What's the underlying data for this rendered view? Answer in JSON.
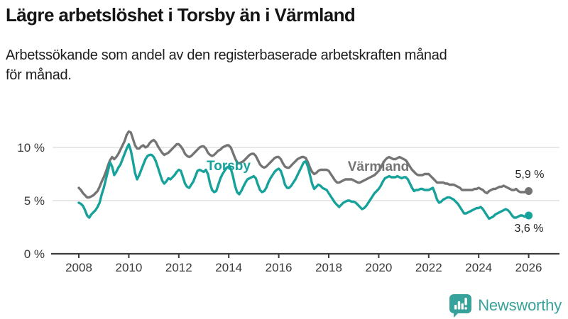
{
  "header": {
    "title": "Lägre arbetslöshet i Torsby än i Värmland",
    "subtitle_lines": [
      "Arbetssökande som andel av den registerbaserade arbetskraften månad",
      "för månad."
    ]
  },
  "footer": {
    "brand": "Newsworthy"
  },
  "colors": {
    "brand": "#37a29b",
    "torsby": "#16a19a",
    "varmland": "#747474",
    "grid": "#d9d9d9",
    "axis": "#3c3c3c"
  },
  "chart_data": {
    "type": "line",
    "title": "Lägre arbetslöshet i Torsby än i Värmland",
    "subtitle": "Arbetssökande som andel av den registerbaserade arbetskraften månad för månad.",
    "x_unit": "month",
    "x_start": "2008-01",
    "x_end": "2026-01",
    "xlim": [
      2008,
      2026.35
    ],
    "ylim": [
      0,
      12
    ],
    "grid": "horizontal",
    "legend_position": "inline-labels",
    "xticks": [
      {
        "value": 2008,
        "label": "2008"
      },
      {
        "value": 2010,
        "label": "2010"
      },
      {
        "value": 2012,
        "label": "2012"
      },
      {
        "value": 2014,
        "label": "2014"
      },
      {
        "value": 2016,
        "label": "2016"
      },
      {
        "value": 2018,
        "label": "2018"
      },
      {
        "value": 2020,
        "label": "2020"
      },
      {
        "value": 2022,
        "label": "2022"
      },
      {
        "value": 2024,
        "label": "2024"
      },
      {
        "value": 2026,
        "label": "2026"
      }
    ],
    "yticks": [
      {
        "value": 0,
        "label": "0 %"
      },
      {
        "value": 5,
        "label": "5 %"
      },
      {
        "value": 10,
        "label": "10 %"
      }
    ],
    "series": [
      {
        "name": "Torsby",
        "color": "#16a19a",
        "end_label": "3,6 %",
        "end_value": 3.6,
        "values": [
          4.8,
          4.7,
          4.5,
          4.1,
          3.6,
          3.4,
          3.7,
          3.9,
          4.1,
          4.4,
          4.8,
          5.6,
          6.2,
          7.0,
          7.8,
          8.6,
          8.2,
          7.4,
          7.7,
          8.1,
          8.4,
          8.9,
          9.4,
          9.9,
          10.3,
          9.7,
          8.7,
          7.6,
          7.0,
          7.4,
          7.9,
          8.4,
          8.9,
          9.2,
          9.3,
          9.3,
          9.1,
          8.7,
          8.1,
          7.5,
          6.9,
          6.6,
          6.8,
          7.1,
          7.0,
          7.2,
          7.4,
          7.7,
          7.9,
          7.8,
          7.2,
          6.6,
          6.3,
          6.2,
          6.5,
          6.8,
          7.3,
          7.8,
          7.9,
          7.8,
          7.7,
          7.9,
          7.5,
          6.6,
          6.0,
          5.8,
          5.9,
          6.5,
          7.1,
          7.5,
          7.8,
          8.1,
          8.2,
          8.0,
          7.3,
          6.4,
          5.8,
          5.6,
          5.9,
          6.3,
          6.7,
          7.0,
          7.1,
          7.2,
          7.3,
          7.1,
          6.5,
          6.0,
          5.8,
          5.9,
          6.2,
          6.7,
          7.1,
          7.4,
          7.7,
          7.9,
          8.0,
          7.8,
          7.2,
          6.5,
          6.2,
          6.2,
          6.4,
          6.7,
          7.0,
          7.4,
          7.8,
          8.2,
          8.6,
          8.7,
          8.2,
          7.4,
          6.6,
          6.1,
          6.3,
          6.5,
          6.4,
          6.2,
          6.1,
          6.0,
          5.7,
          5.4,
          5.1,
          4.8,
          4.6,
          4.4,
          4.6,
          4.8,
          4.9,
          5.0,
          5.0,
          4.9,
          4.9,
          4.8,
          4.6,
          4.4,
          4.2,
          4.3,
          4.5,
          4.8,
          5.1,
          5.4,
          5.7,
          5.9,
          6.1,
          6.4,
          6.8,
          7.1,
          7.2,
          7.3,
          7.2,
          7.2,
          7.2,
          7.3,
          7.2,
          7.1,
          7.2,
          7.2,
          7.0,
          6.6,
          6.2,
          5.9,
          6.0,
          6.0,
          6.1,
          6.1,
          6.0,
          6.0,
          6.0,
          6.1,
          6.2,
          5.7,
          5.1,
          4.8,
          4.9,
          5.1,
          5.2,
          5.3,
          5.3,
          5.2,
          5.1,
          4.9,
          4.7,
          4.4,
          4.1,
          3.8,
          3.8,
          3.9,
          4.0,
          4.1,
          4.2,
          4.3,
          4.3,
          4.4,
          4.2,
          3.9,
          3.6,
          3.3,
          3.4,
          3.5,
          3.7,
          3.8,
          3.9,
          4.0,
          4.1,
          4.2,
          4.1,
          3.9,
          3.6,
          3.4,
          3.4,
          3.5,
          3.6,
          3.6,
          3.5,
          3.6,
          3.6
        ]
      },
      {
        "name": "Värmland",
        "color": "#747474",
        "end_label": "5,9 %",
        "end_value": 5.9,
        "values": [
          6.2,
          6.0,
          5.7,
          5.5,
          5.3,
          5.3,
          5.4,
          5.5,
          5.7,
          5.9,
          6.3,
          6.8,
          7.2,
          7.7,
          8.3,
          8.8,
          9.1,
          8.9,
          9.1,
          9.4,
          9.8,
          10.2,
          10.6,
          11.2,
          11.5,
          11.4,
          10.8,
          10.2,
          9.9,
          9.9,
          10.1,
          10.2,
          10.0,
          10.1,
          10.4,
          10.6,
          10.7,
          10.5,
          10.1,
          9.8,
          9.5,
          9.3,
          9.4,
          9.5,
          9.7,
          9.9,
          10.1,
          10.3,
          10.3,
          10.1,
          9.8,
          9.4,
          9.2,
          9.1,
          9.2,
          9.4,
          9.6,
          9.8,
          10.0,
          10.1,
          10.1,
          9.9,
          9.5,
          9.3,
          9.2,
          9.3,
          9.5,
          9.7,
          9.8,
          10.0,
          10.1,
          10.2,
          10.2,
          10.0,
          9.5,
          9.0,
          8.6,
          8.5,
          8.6,
          8.7,
          8.9,
          9.1,
          9.3,
          9.4,
          9.4,
          9.2,
          8.8,
          8.4,
          8.2,
          8.1,
          8.2,
          8.4,
          8.6,
          8.8,
          9.0,
          9.1,
          9.1,
          8.9,
          8.5,
          8.2,
          8.1,
          8.1,
          8.3,
          8.5,
          8.7,
          8.9,
          9.0,
          9.1,
          9.1,
          9.0,
          8.6,
          8.1,
          7.7,
          7.5,
          7.6,
          7.8,
          7.9,
          7.9,
          7.9,
          7.9,
          7.8,
          7.5,
          7.2,
          6.9,
          6.7,
          6.7,
          6.8,
          6.9,
          7.0,
          7.0,
          7.0,
          7.0,
          6.9,
          6.8,
          6.7,
          6.7,
          6.8,
          6.9,
          7.0,
          7.1,
          7.2,
          7.3,
          7.4,
          7.6,
          7.8,
          8.1,
          8.5,
          8.8,
          9.0,
          9.1,
          9.0,
          8.9,
          8.9,
          9.0,
          9.1,
          9.0,
          8.9,
          8.8,
          8.5,
          8.2,
          7.9,
          7.7,
          7.5,
          7.4,
          7.4,
          7.4,
          7.5,
          7.5,
          7.5,
          7.3,
          7.1,
          6.9,
          6.7,
          6.7,
          6.7,
          6.7,
          6.6,
          6.6,
          6.5,
          6.5,
          6.5,
          6.4,
          6.3,
          6.2,
          6.0,
          6.0,
          6.0,
          6.0,
          6.0,
          6.0,
          6.1,
          6.1,
          6.2,
          6.1,
          6.0,
          5.8,
          5.7,
          5.9,
          6.0,
          6.1,
          6.1,
          6.2,
          6.3,
          6.3,
          6.4,
          6.3,
          6.2,
          6.1,
          6.0,
          6.0,
          6.1,
          5.9,
          5.8,
          5.8,
          5.8,
          5.9,
          5.9
        ]
      }
    ]
  }
}
